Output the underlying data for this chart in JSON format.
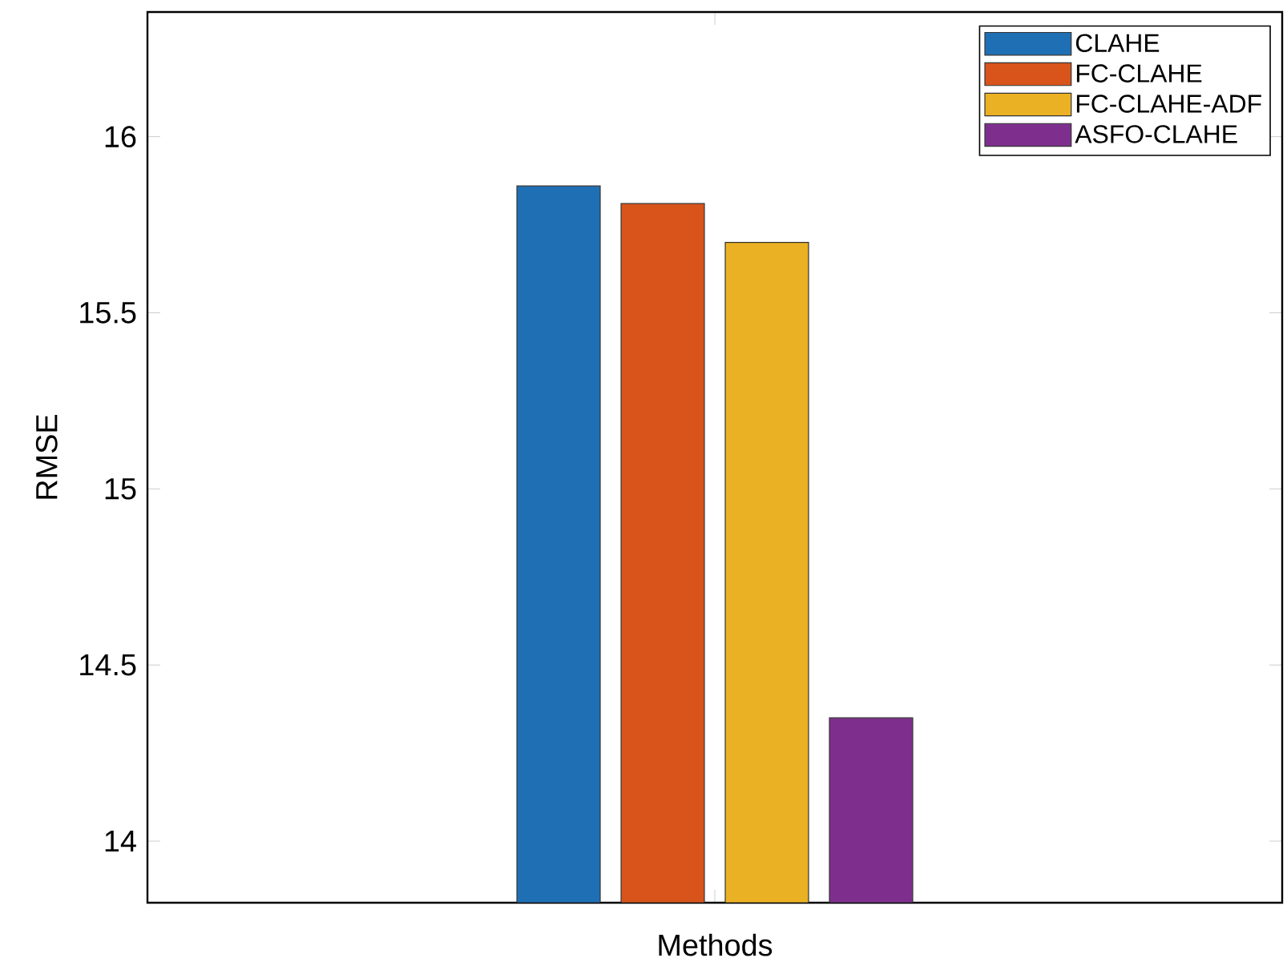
{
  "chart_data": {
    "type": "bar",
    "xlabel": "Methods",
    "ylabel": "RMSE",
    "categories": [
      null
    ],
    "series": [
      {
        "name": "CLAHE",
        "color": "#1f6fb4",
        "values": [
          15.86
        ]
      },
      {
        "name": "FC-CLAHE",
        "color": "#d9541a",
        "values": [
          15.81
        ]
      },
      {
        "name": "FC-CLAHE-ADF",
        "color": "#ebb124",
        "values": [
          15.7
        ]
      },
      {
        "name": "ASFO-CLAHE",
        "color": "#7e2f8e",
        "values": [
          14.35
        ]
      }
    ],
    "ylim": [
      13.825,
      16.354
    ],
    "yticks": [
      14,
      14.5,
      15,
      15.5,
      16
    ],
    "grid": false,
    "legend": "top right"
  }
}
